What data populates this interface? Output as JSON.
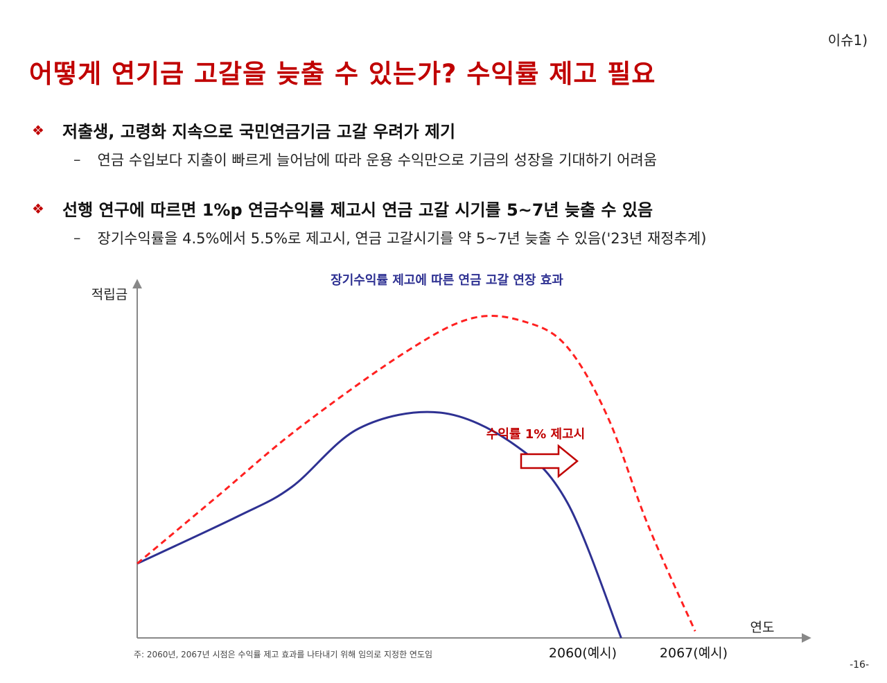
{
  "header": {
    "issue_tag": "이슈1)",
    "title": "어떻게 연기금 고갈을 늦출 수 있는가? 수익률 제고 필요"
  },
  "bullets": [
    {
      "icon": "diamond-bullet-icon",
      "text": "저출생, 고령화 지속으로 국민연금기금 고갈 우려가 제기",
      "sub": "연금 수입보다 지출이 빠르게 늘어남에 따라 운용 수익만으로 기금의 성장을 기대하기 어려움"
    },
    {
      "icon": "diamond-bullet-icon",
      "text": "선행 연구에 따르면 1%p 연금수익률 제고시 연금 고갈 시기를 5~7년 늦출 수 있음",
      "sub": "장기수익률을 4.5%에서 5.5%로 제고시, 연금 고갈시기를 약 5~7년 늦출 수 있음('23년 재정추계)"
    }
  ],
  "chart_data": {
    "type": "line",
    "title": "장기수익률 제고에 따른 연금 고갈 연장 효과",
    "ylabel": "적립금",
    "xlabel": "연도",
    "x_ticks": [
      "2060(예시)",
      "2067(예시)"
    ],
    "annotation": "수익률 1% 제고시",
    "note": "주: 2060년, 2067년 시점은 수익률 제고 효과를 나타내기 위해 임의로 지정한 연도임",
    "colors": {
      "base": "#2e3192",
      "improved": "#ff2020",
      "annotation": "#c00000",
      "axis": "#888888"
    },
    "series": [
      {
        "style": "solid",
        "points": [
          [
            0,
            0.33
          ],
          [
            0.15,
            0.54
          ],
          [
            0.23,
            0.67
          ],
          [
            0.33,
            0.93
          ],
          [
            0.45,
            1.0
          ],
          [
            0.56,
            0.86
          ],
          [
            0.64,
            0.6
          ],
          [
            0.72,
            0.0
          ]
        ]
      },
      {
        "style": "dashed",
        "points": [
          [
            0,
            0.33
          ],
          [
            0.12,
            0.63
          ],
          [
            0.24,
            0.93
          ],
          [
            0.4,
            1.27
          ],
          [
            0.5,
            1.42
          ],
          [
            0.58,
            1.4
          ],
          [
            0.64,
            1.29
          ],
          [
            0.7,
            0.98
          ],
          [
            0.76,
            0.5
          ],
          [
            0.83,
            0.03
          ]
        ]
      }
    ]
  },
  "footer": {
    "page_number": "-16-"
  }
}
